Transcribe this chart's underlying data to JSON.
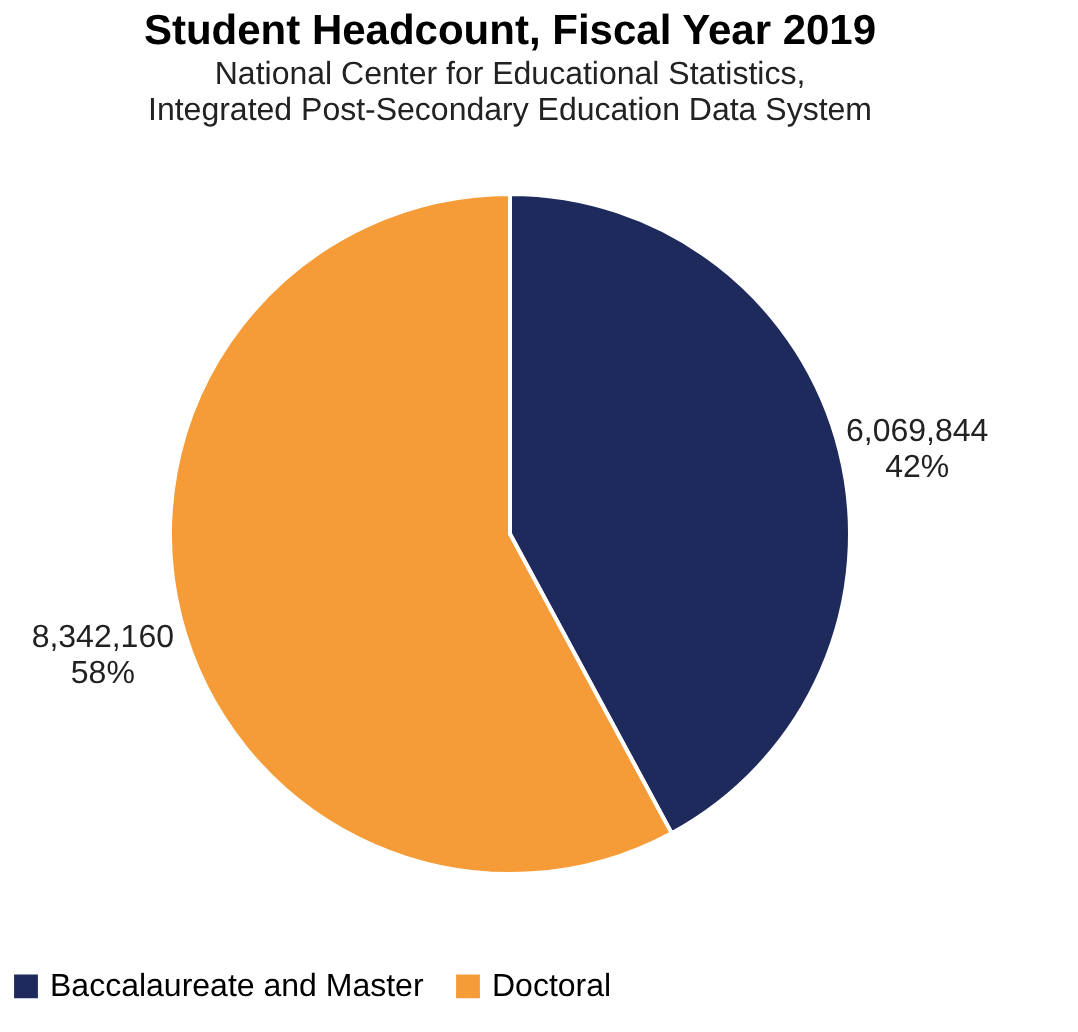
{
  "chart_data": {
    "type": "pie",
    "title": "Student Headcount, Fiscal Year 2019",
    "subtitle": "National Center for Educational Statistics,\nIntegrated Post-Secondary Education Data System",
    "categories": [
      "Baccalaureate and Master",
      "Doctoral"
    ],
    "values": [
      6069844,
      8342160
    ],
    "colors": [
      "#1f2a5c",
      "#f59c38"
    ],
    "value_labels": [
      "6,069,844\n42%",
      "8,342,160\n58%"
    ],
    "legend": "bottom"
  }
}
